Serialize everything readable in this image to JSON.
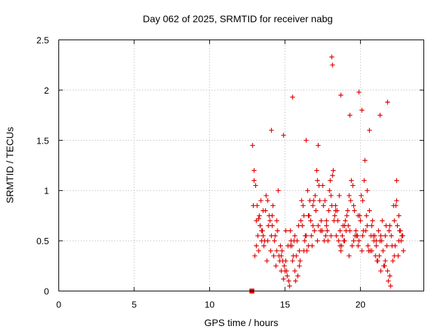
{
  "chart_data": {
    "type": "scatter",
    "title": "Day 062 of 2025, SRMTID for receiver nabg",
    "xlabel": "GPS time / hours",
    "ylabel": "SRMTID / TECUs",
    "xlim": [
      0,
      24.2
    ],
    "ylim": [
      0,
      2.5
    ],
    "xticks": [
      0,
      5,
      10,
      15,
      20
    ],
    "xtick_labels": [
      "0",
      "5",
      "10",
      "15",
      "20"
    ],
    "yticks": [
      0,
      0.5,
      1,
      1.5,
      2,
      2.5
    ],
    "ytick_labels": [
      "0",
      "0.5",
      "1",
      "1.5",
      "2",
      "2.5"
    ],
    "grid": true,
    "series": [
      {
        "name": "SRMTID",
        "color": "#dd0000",
        "marker": "plus",
        "x": [
          12.85,
          12.95,
          13.05,
          13.15,
          13.25,
          13.35,
          13.45,
          13.55,
          13.7,
          13.85,
          14.0,
          14.15,
          14.3,
          14.45,
          14.6,
          14.75,
          14.9,
          15.05,
          15.2,
          15.35,
          15.5,
          15.65,
          15.8,
          15.95,
          16.1,
          16.25,
          16.4,
          16.55,
          16.7,
          16.85,
          17.0,
          17.15,
          17.3,
          17.45,
          17.6,
          17.75,
          17.9,
          18.05,
          18.2,
          18.35,
          18.5,
          18.65,
          18.8,
          18.95,
          19.1,
          19.25,
          19.4,
          19.55,
          19.7,
          19.85,
          20.0,
          20.15,
          20.3,
          20.45,
          20.6,
          20.75,
          20.9,
          21.05,
          21.2,
          21.35,
          21.5,
          21.65,
          21.8,
          21.95,
          22.1,
          22.25,
          22.4,
          22.55,
          22.7,
          22.85,
          12.9,
          13.1,
          13.3,
          13.5,
          13.75,
          14.05,
          14.35,
          14.65,
          14.95,
          15.25,
          15.55,
          15.85,
          16.15,
          16.45,
          16.75,
          17.05,
          17.35,
          17.65,
          17.95,
          18.25,
          18.55,
          18.85,
          19.15,
          19.45,
          19.75,
          20.05,
          20.35,
          20.65,
          20.95,
          21.25,
          21.55,
          21.85,
          22.15,
          22.45,
          22.75,
          13.0,
          13.2,
          13.4,
          13.6,
          13.9,
          14.2,
          14.5,
          14.8,
          15.1,
          15.4,
          15.7,
          16.0,
          16.3,
          16.6,
          16.9,
          17.2,
          17.5,
          17.8,
          18.1,
          18.4,
          18.7,
          19.0,
          19.3,
          19.6,
          19.9,
          20.2,
          20.5,
          20.8,
          21.1,
          21.4,
          21.7,
          22.0,
          22.3,
          22.6,
          13.1,
          13.45,
          13.8,
          14.1,
          14.4,
          14.7,
          15.0,
          15.3,
          15.6,
          15.9,
          16.2,
          16.5,
          16.8,
          17.1,
          17.4,
          17.7,
          18.0,
          18.3,
          18.6,
          18.9,
          19.2,
          19.5,
          19.8,
          20.1,
          20.4,
          20.7,
          21.0,
          21.3,
          21.6,
          21.9,
          22.2,
          22.5,
          22.8,
          12.95,
          13.35,
          13.65,
          13.95,
          14.25,
          14.55,
          14.85,
          15.15,
          15.45,
          15.75,
          16.05,
          16.35,
          16.65,
          16.95,
          17.25,
          17.55,
          17.85,
          18.15,
          18.45,
          18.75,
          19.05,
          19.35,
          19.65,
          19.95,
          20.25,
          20.55,
          20.85,
          21.15,
          21.45,
          21.75,
          22.05,
          22.35,
          22.65,
          13.25,
          13.55,
          13.85,
          14.15,
          14.45,
          14.75,
          15.05,
          15.35,
          15.65,
          15.95,
          16.25,
          16.55,
          16.85,
          17.15,
          17.45,
          17.75,
          18.05,
          18.35,
          18.65,
          18.95,
          19.25,
          19.55,
          19.85,
          20.15,
          20.45,
          20.75,
          21.05,
          21.35,
          21.65,
          21.95,
          22.25,
          22.55,
          14.1,
          14.9,
          15.5,
          16.4,
          17.2,
          18.1,
          18.15,
          18.7,
          19.3,
          19.9,
          20.1,
          20.6,
          21.3,
          21.8,
          22.4
        ],
        "y": [
          1.45,
          1.2,
          1.05,
          0.85,
          0.72,
          0.65,
          0.6,
          0.55,
          0.8,
          0.9,
          0.7,
          0.75,
          0.5,
          0.4,
          0.35,
          0.2,
          0.12,
          0.3,
          0.45,
          0.6,
          0.3,
          0.2,
          0.5,
          0.4,
          0.9,
          0.75,
          0.55,
          0.45,
          0.7,
          0.85,
          0.95,
          1.1,
          0.9,
          0.6,
          0.5,
          0.65,
          0.8,
          0.95,
          1.2,
          0.85,
          0.7,
          0.6,
          0.55,
          0.5,
          0.75,
          0.95,
          1.1,
          0.85,
          0.6,
          0.45,
          0.7,
          0.9,
          1.3,
          1.0,
          0.8,
          0.65,
          0.5,
          0.45,
          0.6,
          0.55,
          0.4,
          0.3,
          0.2,
          0.15,
          0.45,
          0.7,
          0.9,
          0.75,
          0.5,
          0.4,
          0.85,
          0.45,
          0.75,
          0.6,
          0.95,
          0.4,
          0.55,
          0.3,
          0.25,
          0.1,
          0.35,
          0.15,
          0.65,
          0.4,
          0.55,
          0.8,
          0.6,
          0.9,
          1.0,
          0.7,
          0.5,
          0.65,
          0.8,
          0.45,
          0.55,
          0.95,
          0.6,
          0.4,
          0.55,
          0.35,
          0.25,
          0.1,
          0.3,
          0.65,
          0.55,
          0.35,
          0.55,
          0.9,
          0.45,
          0.65,
          0.85,
          0.6,
          0.4,
          0.2,
          0.5,
          0.1,
          0.3,
          0.5,
          0.75,
          0.9,
          0.65,
          1.05,
          0.6,
          0.85,
          0.55,
          0.4,
          0.7,
          0.6,
          0.8,
          0.5,
          0.6,
          0.45,
          0.7,
          0.3,
          0.5,
          0.65,
          0.05,
          0.45,
          0.6,
          0.7,
          0.5,
          0.3,
          0.55,
          0.25,
          0.45,
          0.2,
          0.05,
          0.5,
          0.65,
          0.85,
          1.0,
          0.45,
          1.2,
          0.7,
          0.55,
          1.1,
          0.75,
          0.95,
          0.5,
          0.65,
          1.05,
          0.55,
          0.4,
          0.75,
          0.55,
          0.35,
          0.5,
          0.25,
          0.6,
          0.85,
          0.35,
          0.55,
          1.1,
          0.65,
          0.5,
          0.75,
          0.35,
          1.0,
          0.3,
          0.15,
          0.45,
          0.35,
          0.7,
          0.55,
          0.9,
          0.6,
          1.05,
          0.85,
          0.5,
          1.15,
          0.8,
          0.45,
          0.6,
          0.9,
          0.55,
          0.75,
          1.1,
          0.4,
          0.55,
          0.3,
          0.7,
          0.45,
          0.55,
          0.85,
          0.6,
          0.4,
          0.8,
          0.5,
          0.65,
          0.7,
          0.35,
          0.6,
          0.45,
          0.55,
          0.25,
          0.4,
          0.75,
          0.65,
          0.5,
          0.6,
          0.7,
          0.55,
          0.8,
          0.45,
          0.65,
          0.35,
          0.5,
          0.75,
          0.55,
          0.65,
          0.4,
          0.5,
          0.2,
          0.55,
          0.65,
          0.35,
          0.5,
          1.6,
          1.55,
          1.93,
          1.5,
          1.45,
          2.33,
          2.25,
          1.95,
          1.75,
          1.98,
          1.8,
          1.6,
          1.75,
          1.88,
          1.1
        ]
      }
    ],
    "annotations": [
      {
        "type": "square-marker",
        "x": 12.8,
        "y": 0
      }
    ]
  }
}
